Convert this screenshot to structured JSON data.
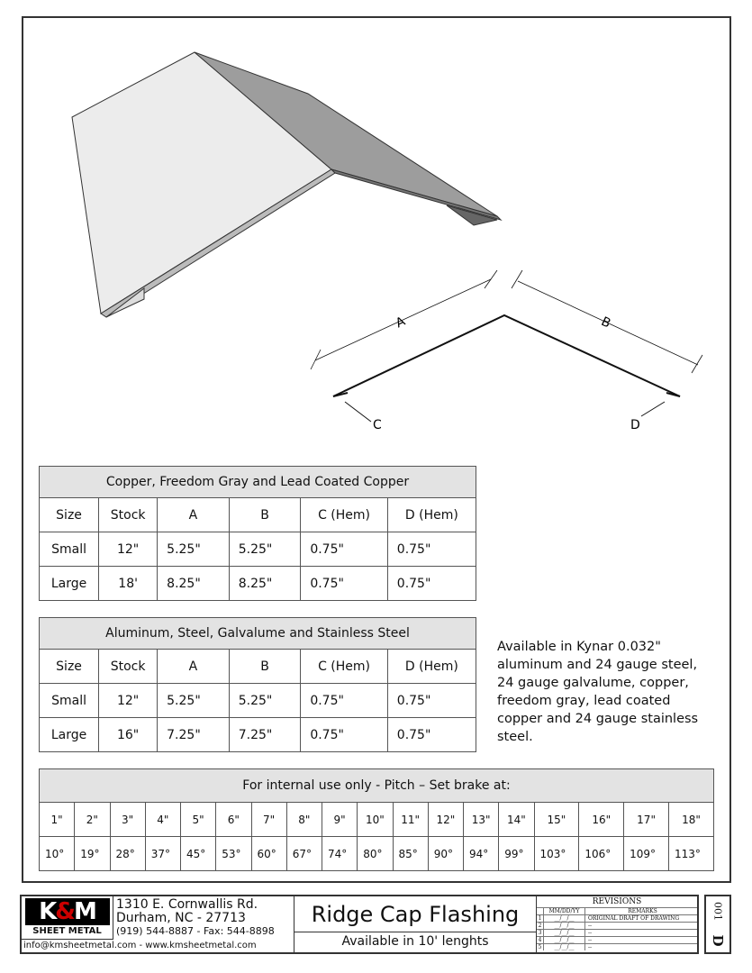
{
  "profile": {
    "labels": {
      "a": "A",
      "b": "B",
      "c": "C",
      "d": "D"
    }
  },
  "table1": {
    "title": "Copper, Freedom Gray and Lead Coated Copper",
    "headers": [
      "Size",
      "Stock",
      "A",
      "B",
      "C (Hem)",
      "D (Hem)"
    ],
    "rows": [
      [
        "Small",
        "12\"",
        "5.25\"",
        "5.25\"",
        "0.75\"",
        "0.75\""
      ],
      [
        "Large",
        "18'",
        "8.25\"",
        "8.25\"",
        "0.75\"",
        "0.75\""
      ]
    ]
  },
  "table2": {
    "title": "Aluminum, Steel, Galvalume and Stainless Steel",
    "headers": [
      "Size",
      "Stock",
      "A",
      "B",
      "C (Hem)",
      "D (Hem)"
    ],
    "rows": [
      [
        "Small",
        "12\"",
        "5.25\"",
        "5.25\"",
        "0.75\"",
        "0.75\""
      ],
      [
        "Large",
        "16\"",
        "7.25\"",
        "7.25\"",
        "0.75\"",
        "0.75\""
      ]
    ]
  },
  "note": "Available in Kynar 0.032\" aluminum and 24 gauge steel, 24 gauge galvalume, copper, freedom gray, lead coated copper and 24 gauge stainless steel.",
  "pitch": {
    "title": "For internal use only - Pitch – Set brake at:",
    "pitches": [
      "1\"",
      "2\"",
      "3\"",
      "4\"",
      "5\"",
      "6\"",
      "7\"",
      "8\"",
      "9\"",
      "10\"",
      "11\"",
      "12\"",
      "13\"",
      "14\"",
      "15\"",
      "16\"",
      "17\"",
      "18\""
    ],
    "angles": [
      "10°",
      "19°",
      "28°",
      "37°",
      "45°",
      "53°",
      "60°",
      "67°",
      "74°",
      "80°",
      "85°",
      "90°",
      "94°",
      "99°",
      "103°",
      "106°",
      "109°",
      "113°"
    ]
  },
  "titleblock": {
    "logo": "K&M",
    "logo_sub": "SHEET METAL",
    "address1": "1310 E. Cornwallis Rd.",
    "address2": "Durham, NC - 27713",
    "phone": "(919) 544-8887 - Fax: 544-8898",
    "contact": "info@kmsheetmetal.com - www.kmsheetmetal.com",
    "title": "Ridge Cap Flashing",
    "subtitle": "Available in 10' lenghts",
    "revisions": {
      "heading": "REVISIONS",
      "col_date": "MM/DD/YY",
      "col_remarks": "REMARKS",
      "rows": [
        {
          "n": "1",
          "date": "__/__/__",
          "remark": "ORIGINAL DRAFT OF DRAWING"
        },
        {
          "n": "2",
          "date": "__/__/__",
          "remark": "--"
        },
        {
          "n": "3",
          "date": "__/__/__",
          "remark": "--"
        },
        {
          "n": "4",
          "date": "__/__/__",
          "remark": "--"
        },
        {
          "n": "5",
          "date": "__/__/__",
          "remark": "--"
        }
      ]
    },
    "sheet_letter": "D",
    "sheet_number": "001"
  }
}
